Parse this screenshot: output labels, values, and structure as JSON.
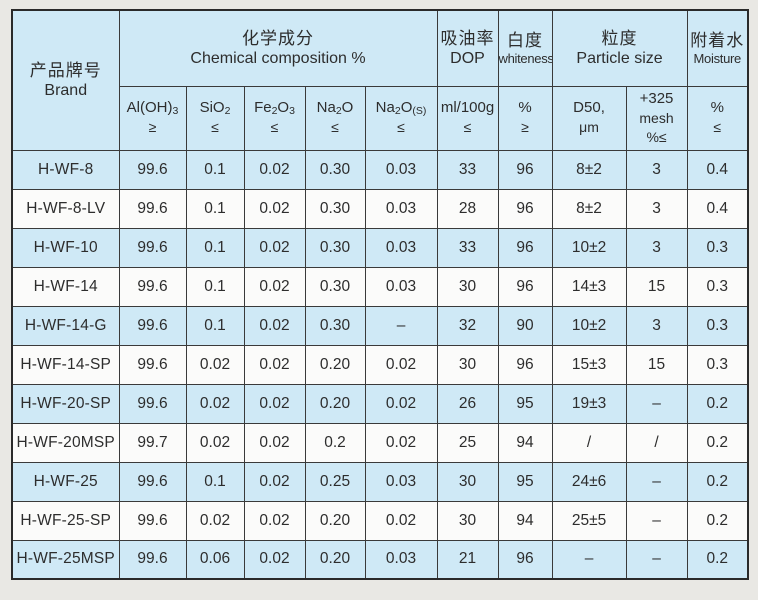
{
  "colors": {
    "row_blue": "#cfe9f6",
    "row_white": "#fbfbfa",
    "border": "#3a3a3a",
    "text": "#2d2d2d",
    "page_background": "#e9e8e4"
  },
  "table": {
    "brand_header": {
      "zh": "产品牌号",
      "en": "Brand"
    },
    "groups": {
      "chemical": {
        "zh": "化学成分",
        "en": "Chemical composition %"
      },
      "dop": {
        "zh": "吸油率",
        "en": "DOP"
      },
      "whiteness": {
        "zh": "白度",
        "en": "whiteness"
      },
      "particle": {
        "zh": "粒度",
        "en": "Particle size"
      },
      "moisture": {
        "zh": "附着水",
        "en": "Moisture"
      }
    },
    "subheaders": [
      {
        "name": "al-oh3",
        "parts": [
          {
            "t": "Al(OH)"
          },
          {
            "t": "3",
            "sub": true
          }
        ],
        "limit": "≥"
      },
      {
        "name": "sio2",
        "parts": [
          {
            "t": "SiO"
          },
          {
            "t": "2",
            "sub": true
          }
        ],
        "limit": "≤"
      },
      {
        "name": "fe2o3",
        "parts": [
          {
            "t": "Fe"
          },
          {
            "t": "2",
            "sub": true
          },
          {
            "t": "O"
          },
          {
            "t": "3",
            "sub": true
          }
        ],
        "limit": "≤"
      },
      {
        "name": "na2o",
        "parts": [
          {
            "t": "Na"
          },
          {
            "t": "2",
            "sub": true
          },
          {
            "t": "O"
          }
        ],
        "limit": "≤"
      },
      {
        "name": "na2o-s",
        "parts": [
          {
            "t": "Na"
          },
          {
            "t": "2",
            "sub": true
          },
          {
            "t": "O"
          },
          {
            "t": "(S)",
            "sub": true
          }
        ],
        "limit": "≤"
      },
      {
        "name": "dop-unit",
        "parts": [
          {
            "t": "ml/100g"
          }
        ],
        "limit": "≤"
      },
      {
        "name": "whiteness-unit",
        "parts": [
          {
            "t": "%"
          }
        ],
        "limit": "≥"
      },
      {
        "name": "d50",
        "parts": [
          {
            "t": "D50,"
          }
        ],
        "limit": "μm"
      },
      {
        "name": "mesh-325",
        "parts": [
          {
            "t": "+325"
          }
        ],
        "limit": "mesh",
        "limit2": "%≤"
      },
      {
        "name": "moisture-unit",
        "parts": [
          {
            "t": "%"
          }
        ],
        "limit": "≤"
      }
    ],
    "rows": [
      {
        "brand": "H-WF-8",
        "values": [
          "99.6",
          "0.1",
          "0.02",
          "0.30",
          "0.03",
          "33",
          "96",
          "8±2",
          "3",
          "0.4"
        ]
      },
      {
        "brand": "H-WF-8-LV",
        "values": [
          "99.6",
          "0.1",
          "0.02",
          "0.30",
          "0.03",
          "28",
          "96",
          "8±2",
          "3",
          "0.4"
        ]
      },
      {
        "brand": "H-WF-10",
        "values": [
          "99.6",
          "0.1",
          "0.02",
          "0.30",
          "0.03",
          "33",
          "96",
          "10±2",
          "3",
          "0.3"
        ]
      },
      {
        "brand": "H-WF-14",
        "values": [
          "99.6",
          "0.1",
          "0.02",
          "0.30",
          "0.03",
          "30",
          "96",
          "14±3",
          "15",
          "0.3"
        ]
      },
      {
        "brand": "H-WF-14-G",
        "values": [
          "99.6",
          "0.1",
          "0.02",
          "0.30",
          "–",
          "32",
          "90",
          "10±2",
          "3",
          "0.3"
        ]
      },
      {
        "brand": "H-WF-14-SP",
        "values": [
          "99.6",
          "0.02",
          "0.02",
          "0.20",
          "0.02",
          "30",
          "96",
          "15±3",
          "15",
          "0.3"
        ]
      },
      {
        "brand": "H-WF-20-SP",
        "values": [
          "99.6",
          "0.02",
          "0.02",
          "0.20",
          "0.02",
          "26",
          "95",
          "19±3",
          "–",
          "0.2"
        ]
      },
      {
        "brand": "H-WF-20MSP",
        "values": [
          "99.7",
          "0.02",
          "0.02",
          "0.2",
          "0.02",
          "25",
          "94",
          "/",
          "/",
          "0.2"
        ]
      },
      {
        "brand": "H-WF-25",
        "values": [
          "99.6",
          "0.1",
          "0.02",
          "0.25",
          "0.03",
          "30",
          "95",
          "24±6",
          "–",
          "0.2"
        ]
      },
      {
        "brand": "H-WF-25-SP",
        "values": [
          "99.6",
          "0.02",
          "0.02",
          "0.20",
          "0.02",
          "30",
          "94",
          "25±5",
          "–",
          "0.2"
        ]
      },
      {
        "brand": "H-WF-25MSP",
        "values": [
          "99.6",
          "0.06",
          "0.02",
          "0.20",
          "0.03",
          "21",
          "96",
          "–",
          "–",
          "0.2"
        ]
      }
    ]
  }
}
